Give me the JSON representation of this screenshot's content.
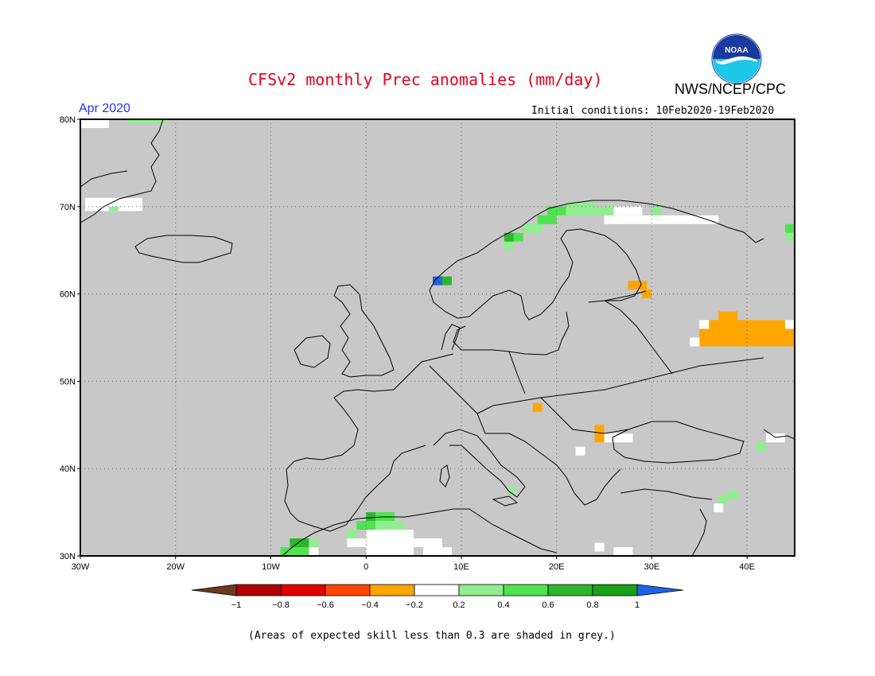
{
  "title": "CFSv2 monthly Prec anomalies (mm/day)",
  "agency": "NWS/NCEP/CPC",
  "logo_text": "NOAA",
  "valid_month": "Apr 2020",
  "initial_conditions": "Initial conditions: 10Feb2020-19Feb2020",
  "footnote": "(Areas of expected skill less than 0.3 are shaded in grey.)",
  "map": {
    "region": "Europe",
    "lon_range": [
      -30,
      45
    ],
    "lat_range": [
      30,
      80
    ],
    "lon_ticks": [
      "30W",
      "20W",
      "10W",
      "0",
      "10E",
      "20E",
      "30E",
      "40E"
    ],
    "lat_ticks": [
      "30N",
      "40N",
      "50N",
      "60N",
      "70N",
      "80N"
    ],
    "gridlines": true,
    "land_fill": "#c8c8c8"
  },
  "colorbar": {
    "labels": [
      "-1",
      "-0.8",
      "-0.6",
      "-0.4",
      "-0.2",
      "0.2",
      "0.4",
      "0.6",
      "0.8",
      "1"
    ],
    "colors": [
      "#6b3a1f",
      "#b00000",
      "#e00000",
      "#ff4500",
      "#ffa500",
      "#ffffff",
      "#90ee90",
      "#4fe34f",
      "#2db52d",
      "#18a018",
      "#1e64e6"
    ]
  },
  "anomaly_cells": [
    {
      "lon": -30,
      "lat": 79,
      "c": "#ffffff",
      "w": 3,
      "h": 1
    },
    {
      "lon": -25,
      "lat": 79.5,
      "c": "#90ee90",
      "w": 4,
      "h": 0.5
    },
    {
      "lon": -29.5,
      "lat": 69.5,
      "c": "#ffffff",
      "w": 6,
      "h": 1.5
    },
    {
      "lon": -27,
      "lat": 69.5,
      "c": "#90ee90",
      "w": 1,
      "h": 0.5
    },
    {
      "lon": 14.5,
      "lat": 65,
      "c": "#90ee90",
      "w": 1,
      "h": 1
    },
    {
      "lon": 14.5,
      "lat": 66,
      "c": "#2db52d",
      "w": 1,
      "h": 1
    },
    {
      "lon": 15.5,
      "lat": 66,
      "c": "#4fe34f",
      "w": 1,
      "h": 1
    },
    {
      "lon": 16.5,
      "lat": 67,
      "c": "#90ee90",
      "w": 2,
      "h": 1
    },
    {
      "lon": 18,
      "lat": 68,
      "c": "#4fe34f",
      "w": 2,
      "h": 1
    },
    {
      "lon": 19,
      "lat": 69,
      "c": "#4fe34f",
      "w": 2,
      "h": 1
    },
    {
      "lon": 21,
      "lat": 69,
      "c": "#90ee90",
      "w": 3,
      "h": 1
    },
    {
      "lon": 21,
      "lat": 70,
      "c": "#90ee90",
      "w": 3,
      "h": 0.5
    },
    {
      "lon": 24,
      "lat": 69,
      "c": "#90ee90",
      "w": 2,
      "h": 1
    },
    {
      "lon": 25,
      "lat": 68,
      "c": "#ffffff",
      "w": 5,
      "h": 1
    },
    {
      "lon": 26,
      "lat": 69,
      "c": "#ffffff",
      "w": 3,
      "h": 1
    },
    {
      "lon": 30,
      "lat": 68,
      "c": "#ffffff",
      "w": 7,
      "h": 1
    },
    {
      "lon": 30,
      "lat": 69,
      "c": "#90ee90",
      "w": 1,
      "h": 1
    },
    {
      "lon": 7,
      "lat": 61,
      "c": "#1e64e6",
      "w": 1,
      "h": 1
    },
    {
      "lon": 8,
      "lat": 61,
      "c": "#2db52d",
      "w": 1,
      "h": 1
    },
    {
      "lon": 27.5,
      "lat": 60.5,
      "c": "#ffa500",
      "w": 2,
      "h": 1
    },
    {
      "lon": 29,
      "lat": 59.5,
      "c": "#ffa500",
      "w": 1,
      "h": 1
    },
    {
      "lon": 37,
      "lat": 57,
      "c": "#ffa500",
      "w": 2,
      "h": 1
    },
    {
      "lon": 36,
      "lat": 56,
      "c": "#ffa500",
      "w": 8,
      "h": 1
    },
    {
      "lon": 35,
      "lat": 55,
      "c": "#ffa500",
      "w": 10,
      "h": 1
    },
    {
      "lon": 35,
      "lat": 54,
      "c": "#ffa500",
      "w": 10,
      "h": 1
    },
    {
      "lon": 34,
      "lat": 54,
      "c": "#ffffff",
      "w": 1,
      "h": 1
    },
    {
      "lon": 35,
      "lat": 56,
      "c": "#ffffff",
      "w": 1,
      "h": 1
    },
    {
      "lon": 44,
      "lat": 56,
      "c": "#ffffff",
      "w": 1,
      "h": 1
    },
    {
      "lon": 17.5,
      "lat": 46.5,
      "c": "#ffa500",
      "w": 1,
      "h": 1
    },
    {
      "lon": 24,
      "lat": 43,
      "c": "#ffa500",
      "w": 1,
      "h": 2
    },
    {
      "lon": 25,
      "lat": 43,
      "c": "#ffffff",
      "w": 3,
      "h": 1
    },
    {
      "lon": 22,
      "lat": 41.5,
      "c": "#ffffff",
      "w": 1,
      "h": 1
    },
    {
      "lon": 42,
      "lat": 43,
      "c": "#ffffff",
      "w": 2,
      "h": 1
    },
    {
      "lon": 41,
      "lat": 42,
      "c": "#90ee90",
      "w": 1,
      "h": 1
    },
    {
      "lon": 15,
      "lat": 37,
      "c": "#90ee90",
      "w": 0.6,
      "h": 1
    },
    {
      "lon": 38,
      "lat": 36.5,
      "c": "#90ee90",
      "w": 1,
      "h": 1
    },
    {
      "lon": 36.5,
      "lat": 35,
      "c": "#ffffff",
      "w": 1,
      "h": 1
    },
    {
      "lon": 37,
      "lat": 36,
      "c": "#90ee90",
      "w": 1,
      "h": 1
    },
    {
      "lon": -8,
      "lat": 31,
      "c": "#2db52d",
      "w": 2,
      "h": 1
    },
    {
      "lon": -6,
      "lat": 31,
      "c": "#90ee90",
      "w": 1,
      "h": 1
    },
    {
      "lon": -9,
      "lat": 30,
      "c": "#4fe34f",
      "w": 3,
      "h": 1
    },
    {
      "lon": -6,
      "lat": 30,
      "c": "#ffffff",
      "w": 1,
      "h": 1
    },
    {
      "lon": -2,
      "lat": 32,
      "c": "#90ee90",
      "w": 1,
      "h": 1
    },
    {
      "lon": -1,
      "lat": 33,
      "c": "#4fe34f",
      "w": 2,
      "h": 1
    },
    {
      "lon": 0,
      "lat": 34,
      "c": "#2db52d",
      "w": 1,
      "h": 1
    },
    {
      "lon": 1,
      "lat": 34,
      "c": "#4fe34f",
      "w": 2,
      "h": 1
    },
    {
      "lon": 1,
      "lat": 33,
      "c": "#90ee90",
      "w": 3,
      "h": 1
    },
    {
      "lon": 0,
      "lat": 32,
      "c": "#ffffff",
      "w": 5,
      "h": 1
    },
    {
      "lon": 0,
      "lat": 30,
      "c": "#ffffff",
      "w": 6,
      "h": 2
    },
    {
      "lon": -2,
      "lat": 31,
      "c": "#ffffff",
      "w": 2,
      "h": 1
    },
    {
      "lon": 5,
      "lat": 31,
      "c": "#ffffff",
      "w": 3,
      "h": 1
    },
    {
      "lon": 6,
      "lat": 30,
      "c": "#ffffff",
      "w": 3,
      "h": 1
    },
    {
      "lon": 5,
      "lat": 30,
      "c": "#c8c8c8",
      "w": 1,
      "h": 1
    },
    {
      "lon": 24,
      "lat": 30.5,
      "c": "#ffffff",
      "w": 1,
      "h": 1
    },
    {
      "lon": 26,
      "lat": 30,
      "c": "#ffffff",
      "w": 2,
      "h": 1
    },
    {
      "lon": 44,
      "lat": 66,
      "c": "#90ee90",
      "w": 2,
      "h": 1
    },
    {
      "lon": 44,
      "lat": 67,
      "c": "#4fe34f",
      "w": 1,
      "h": 1
    }
  ]
}
